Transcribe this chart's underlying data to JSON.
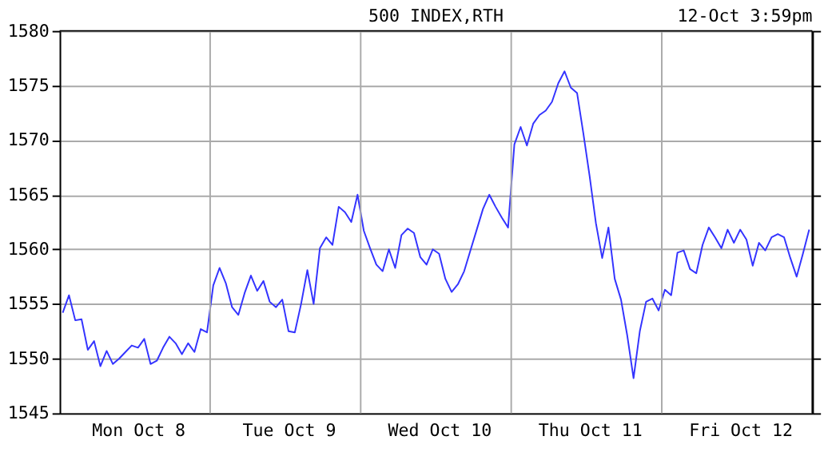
{
  "chart_data": {
    "type": "line",
    "title": "500 INDEX,RTH",
    "annotations": [
      "12-Oct 3:59pm"
    ],
    "categories": [
      null,
      null,
      null,
      null,
      null,
      null,
      null,
      null,
      null,
      null,
      null,
      null,
      "Mon Oct 8",
      null,
      null,
      null,
      null,
      null,
      null,
      null,
      null,
      null,
      null,
      null,
      null,
      null,
      null,
      null,
      null,
      null,
      null,
      null,
      null,
      null,
      null,
      null,
      "Tue Oct 9",
      null,
      null,
      null,
      null,
      null,
      null,
      null,
      null,
      null,
      null,
      null,
      null,
      null,
      null,
      null,
      null,
      null,
      null,
      null,
      null,
      null,
      null,
      null,
      "Wed Oct 10",
      null,
      null,
      null,
      null,
      null,
      null,
      null,
      null,
      null,
      null,
      null,
      null,
      null,
      null,
      null,
      null,
      null,
      null,
      null,
      null,
      null,
      null,
      null,
      "Thu Oct 11",
      null,
      null,
      null,
      null,
      null,
      null,
      null,
      null,
      null,
      null,
      null,
      null,
      null,
      null,
      null,
      null,
      null,
      null,
      null,
      null,
      null,
      null,
      null,
      "Fri Oct 12",
      null,
      null,
      null,
      null,
      null,
      null,
      null,
      null,
      null,
      null,
      null
    ],
    "ylim": [
      1545,
      1580
    ],
    "yticks": [
      1545,
      1550,
      1555,
      1560,
      1565,
      1570,
      1575,
      1580
    ],
    "grid": true,
    "legend": false,
    "marker": "none",
    "line_style": "solid",
    "series": [
      {
        "color": "#3333ff",
        "values": [
          1554.2,
          1555.8,
          1553.5,
          1553.6,
          1550.8,
          1551.6,
          1549.3,
          1550.7,
          1549.5,
          1550.0,
          1550.6,
          1551.2,
          1551.0,
          1551.8,
          1549.5,
          1549.8,
          1551.0,
          1552.0,
          1551.4,
          1550.4,
          1551.4,
          1550.6,
          1552.7,
          1552.4,
          1556.7,
          1558.3,
          1556.9,
          1554.7,
          1554.0,
          1556.0,
          1557.6,
          1556.2,
          1557.1,
          1555.2,
          1554.7,
          1555.4,
          1552.5,
          1552.4,
          1555.0,
          1558.1,
          1555.0,
          1560.1,
          1561.1,
          1560.4,
          1563.9,
          1563.4,
          1562.5,
          1565.0,
          1561.7,
          1560.1,
          1558.6,
          1558.0,
          1560.0,
          1558.3,
          1561.3,
          1561.9,
          1561.5,
          1559.3,
          1558.6,
          1560.0,
          1559.6,
          1557.3,
          1556.1,
          1556.8,
          1558.0,
          1559.9,
          1561.8,
          1563.7,
          1565.0,
          1563.9,
          1562.9,
          1562.0,
          1569.6,
          1571.2,
          1569.5,
          1571.5,
          1572.3,
          1572.7,
          1573.5,
          1575.2,
          1576.3,
          1574.8,
          1574.3,
          1570.6,
          1566.7,
          1562.4,
          1559.2,
          1562.0,
          1557.3,
          1555.4,
          1552.1,
          1548.2,
          1552.5,
          1555.2,
          1555.5,
          1554.4,
          1556.3,
          1555.8,
          1559.7,
          1559.9,
          1558.2,
          1557.8,
          1560.4,
          1562.0,
          1561.1,
          1560.1,
          1561.8,
          1560.6,
          1561.8,
          1560.9,
          1558.5,
          1560.6,
          1559.9,
          1561.1,
          1561.4,
          1561.1,
          1559.2,
          1557.5,
          1559.6,
          1561.8
        ]
      }
    ]
  }
}
